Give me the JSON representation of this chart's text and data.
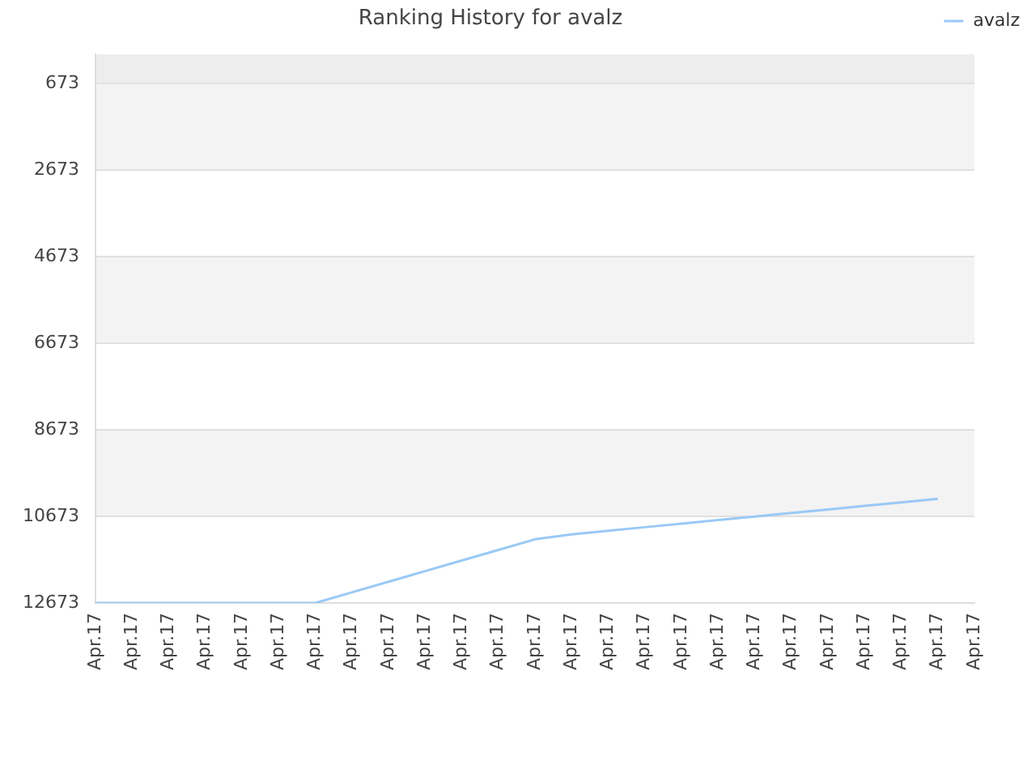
{
  "chart_data": {
    "type": "line",
    "title": "Ranking History for avalz",
    "categories": [
      "Apr.17",
      "Apr.17",
      "Apr.17",
      "Apr.17",
      "Apr.17",
      "Apr.17",
      "Apr.17",
      "Apr.17",
      "Apr.17",
      "Apr.17",
      "Apr.17",
      "Apr.17",
      "Apr.17",
      "Apr.17",
      "Apr.17",
      "Apr.17",
      "Apr.17",
      "Apr.17",
      "Apr.17",
      "Apr.17",
      "Apr.17",
      "Apr.17",
      "Apr.17",
      "Apr.17",
      "Apr.17"
    ],
    "series": [
      {
        "name": "avalz",
        "color": "#99c9f5",
        "values": [
          12673,
          12673,
          12673,
          12673,
          12673,
          12673,
          12673,
          12428,
          12183,
          11938,
          11693,
          11448,
          11203,
          11089,
          11005,
          10923,
          10841,
          10759,
          10677,
          10595,
          10513,
          10431,
          10349,
          10267,
          null
        ]
      }
    ],
    "ylim": [
      12673,
      0
    ],
    "yticks": [
      673,
      2673,
      4673,
      6673,
      8673,
      10673,
      12673
    ],
    "bands": [
      {
        "axis": "y",
        "from": 0,
        "to": 673,
        "color": "#ededed"
      },
      {
        "axis": "y",
        "from": 673,
        "to": 2673,
        "color": "#f3f3f3"
      },
      {
        "axis": "y",
        "from": 4673,
        "to": 6673,
        "color": "#f3f3f3"
      },
      {
        "axis": "y",
        "from": 8673,
        "to": 10673,
        "color": "#f3f3f3"
      }
    ],
    "grid": "y",
    "legend": "top right",
    "marker": "none",
    "line_style": "solid"
  }
}
